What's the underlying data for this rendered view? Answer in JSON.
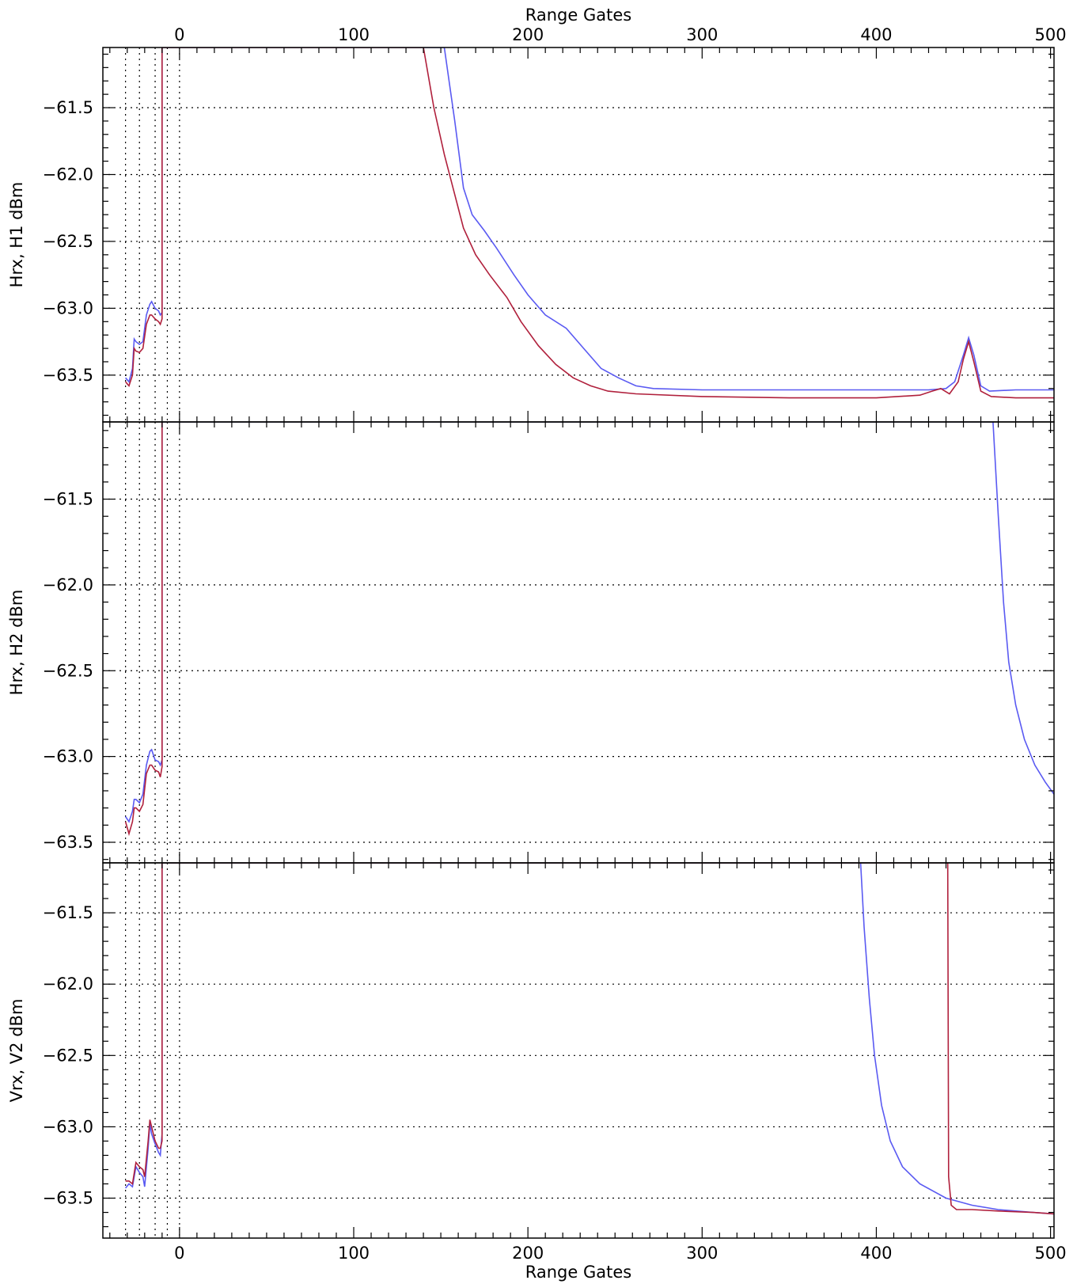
{
  "chart_data": {
    "type": "line",
    "x_axis": {
      "label_top": "Range Gates",
      "label_bottom": "Range Gates",
      "xlim": [
        -44,
        502
      ],
      "ticks": [
        0,
        100,
        200,
        300,
        400,
        500
      ],
      "tick_labels": [
        "0",
        "100",
        "200",
        "300",
        "400",
        "500"
      ]
    },
    "vertical_dotted_lines": [
      -31,
      -23,
      -14,
      -7,
      0
    ],
    "series_colors": {
      "blue": "#5a5af2",
      "red": "#b0203c"
    },
    "panels": [
      {
        "ylabel": "Hrx, H1 dBm",
        "ylim": [
          -63.85,
          -61.05
        ],
        "yticks": [
          -61.5,
          -62.0,
          -62.5,
          -63.0,
          -63.5
        ],
        "ytick_labels": [
          "−61.5",
          "−62.0",
          "−62.5",
          "−63.0",
          "−63.5"
        ],
        "series": [
          {
            "color": "blue",
            "points": [
              [
                -31,
                -63.52
              ],
              [
                -29,
                -63.55
              ],
              [
                -27,
                -63.45
              ],
              [
                -26,
                -63.23
              ],
              [
                -25,
                -63.25
              ],
              [
                -23,
                -63.27
              ],
              [
                -21,
                -63.25
              ],
              [
                -19,
                -63.05
              ],
              [
                -17,
                -62.97
              ],
              [
                -16,
                -62.95
              ],
              [
                -14,
                -63.0
              ],
              [
                -12,
                -63.02
              ],
              [
                -11,
                -63.05
              ],
              [
                -10,
                -63.03
              ],
              [
                -10,
                -61.05
              ],
              [
                152,
                -61.05
              ],
              [
                158,
                -61.6
              ],
              [
                163,
                -62.1
              ],
              [
                168,
                -62.3
              ],
              [
                175,
                -62.42
              ],
              [
                182,
                -62.55
              ],
              [
                192,
                -62.75
              ],
              [
                200,
                -62.9
              ],
              [
                210,
                -63.05
              ],
              [
                222,
                -63.15
              ],
              [
                232,
                -63.3
              ],
              [
                242,
                -63.45
              ],
              [
                252,
                -63.52
              ],
              [
                262,
                -63.58
              ],
              [
                272,
                -63.6
              ],
              [
                300,
                -63.61
              ],
              [
                350,
                -63.61
              ],
              [
                400,
                -63.61
              ],
              [
                430,
                -63.61
              ],
              [
                440,
                -63.6
              ],
              [
                445,
                -63.55
              ],
              [
                450,
                -63.35
              ],
              [
                453,
                -63.22
              ],
              [
                456,
                -63.35
              ],
              [
                460,
                -63.58
              ],
              [
                465,
                -63.62
              ],
              [
                480,
                -63.61
              ],
              [
                500,
                -63.61
              ],
              [
                502,
                -63.61
              ]
            ]
          },
          {
            "color": "red",
            "points": [
              [
                -31,
                -63.55
              ],
              [
                -29,
                -63.58
              ],
              [
                -27,
                -63.5
              ],
              [
                -26,
                -63.3
              ],
              [
                -25,
                -63.32
              ],
              [
                -23,
                -63.33
              ],
              [
                -21,
                -63.3
              ],
              [
                -19,
                -63.12
              ],
              [
                -17,
                -63.05
              ],
              [
                -16,
                -63.05
              ],
              [
                -14,
                -63.08
              ],
              [
                -12,
                -63.1
              ],
              [
                -11,
                -63.12
              ],
              [
                -10,
                -63.08
              ],
              [
                -10,
                -61.05
              ],
              [
                140,
                -61.05
              ],
              [
                146,
                -61.5
              ],
              [
                152,
                -61.85
              ],
              [
                158,
                -62.15
              ],
              [
                163,
                -62.4
              ],
              [
                170,
                -62.6
              ],
              [
                178,
                -62.75
              ],
              [
                188,
                -62.92
              ],
              [
                196,
                -63.1
              ],
              [
                206,
                -63.28
              ],
              [
                216,
                -63.42
              ],
              [
                226,
                -63.52
              ],
              [
                236,
                -63.58
              ],
              [
                246,
                -63.62
              ],
              [
                262,
                -63.64
              ],
              [
                300,
                -63.66
              ],
              [
                350,
                -63.67
              ],
              [
                400,
                -63.67
              ],
              [
                425,
                -63.65
              ],
              [
                432,
                -63.62
              ],
              [
                437,
                -63.6
              ],
              [
                442,
                -63.64
              ],
              [
                447,
                -63.55
              ],
              [
                450,
                -63.38
              ],
              [
                453,
                -63.25
              ],
              [
                456,
                -63.4
              ],
              [
                460,
                -63.62
              ],
              [
                466,
                -63.66
              ],
              [
                480,
                -63.67
              ],
              [
                502,
                -63.67
              ]
            ]
          }
        ]
      },
      {
        "ylabel": "Hrx, H2 dBm",
        "ylim": [
          -63.62,
          -61.05
        ],
        "yticks": [
          -61.5,
          -62.0,
          -62.5,
          -63.0,
          -63.5
        ],
        "ytick_labels": [
          "−61.5",
          "−62.0",
          "−62.5",
          "−63.0",
          "−63.5"
        ],
        "series": [
          {
            "color": "blue",
            "points": [
              [
                -31,
                -63.35
              ],
              [
                -29,
                -63.38
              ],
              [
                -27,
                -63.32
              ],
              [
                -26,
                -63.25
              ],
              [
                -25,
                -63.25
              ],
              [
                -23,
                -63.27
              ],
              [
                -21,
                -63.22
              ],
              [
                -19,
                -63.05
              ],
              [
                -17,
                -62.97
              ],
              [
                -16,
                -62.96
              ],
              [
                -14,
                -63.02
              ],
              [
                -12,
                -63.03
              ],
              [
                -11,
                -63.05
              ],
              [
                -10,
                -63.02
              ],
              [
                -10,
                -61.05
              ],
              [
                467,
                -61.05
              ],
              [
                470,
                -61.6
              ],
              [
                473,
                -62.1
              ],
              [
                476,
                -62.45
              ],
              [
                480,
                -62.7
              ],
              [
                485,
                -62.9
              ],
              [
                491,
                -63.05
              ],
              [
                497,
                -63.15
              ],
              [
                502,
                -63.22
              ]
            ]
          },
          {
            "color": "red",
            "points": [
              [
                -31,
                -63.38
              ],
              [
                -29,
                -63.45
              ],
              [
                -27,
                -63.38
              ],
              [
                -26,
                -63.3
              ],
              [
                -25,
                -63.3
              ],
              [
                -23,
                -63.32
              ],
              [
                -21,
                -63.28
              ],
              [
                -19,
                -63.1
              ],
              [
                -17,
                -63.05
              ],
              [
                -16,
                -63.05
              ],
              [
                -14,
                -63.08
              ],
              [
                -12,
                -63.09
              ],
              [
                -11,
                -63.12
              ],
              [
                -10,
                -63.06
              ],
              [
                -10,
                -61.05
              ]
            ]
          }
        ]
      },
      {
        "ylabel": "Vrx, V2 dBm",
        "ylim": [
          -63.78,
          -61.15
        ],
        "yticks": [
          -61.5,
          -62.0,
          -62.5,
          -63.0,
          -63.5
        ],
        "ytick_labels": [
          "−61.5",
          "−62.0",
          "−62.5",
          "−63.0",
          "−63.5"
        ],
        "series": [
          {
            "color": "blue",
            "points": [
              [
                -31,
                -63.43
              ],
              [
                -29,
                -63.4
              ],
              [
                -27,
                -63.42
              ],
              [
                -25,
                -63.28
              ],
              [
                -23,
                -63.32
              ],
              [
                -21,
                -63.35
              ],
              [
                -20,
                -63.42
              ],
              [
                -18,
                -63.15
              ],
              [
                -17,
                -62.98
              ],
              [
                -16,
                -63.05
              ],
              [
                -14,
                -63.12
              ],
              [
                -12,
                -63.18
              ],
              [
                -11,
                -63.2
              ],
              [
                -10,
                -63.05
              ],
              [
                -10,
                -61.15
              ],
              [
                391,
                -61.15
              ],
              [
                393,
                -61.6
              ],
              [
                396,
                -62.1
              ],
              [
                399,
                -62.5
              ],
              [
                403,
                -62.85
              ],
              [
                408,
                -63.1
              ],
              [
                415,
                -63.28
              ],
              [
                425,
                -63.4
              ],
              [
                440,
                -63.5
              ],
              [
                455,
                -63.55
              ],
              [
                470,
                -63.58
              ],
              [
                490,
                -63.6
              ],
              [
                502,
                -63.61
              ]
            ]
          },
          {
            "color": "red",
            "points": [
              [
                -31,
                -63.38
              ],
              [
                -29,
                -63.38
              ],
              [
                -27,
                -63.4
              ],
              [
                -25,
                -63.25
              ],
              [
                -23,
                -63.28
              ],
              [
                -21,
                -63.3
              ],
              [
                -20,
                -63.35
              ],
              [
                -18,
                -63.1
              ],
              [
                -17,
                -62.95
              ],
              [
                -16,
                -63.0
              ],
              [
                -14,
                -63.1
              ],
              [
                -12,
                -63.15
              ],
              [
                -11,
                -63.15
              ],
              [
                -10,
                -63.1
              ],
              [
                -10,
                -61.15
              ],
              [
                441,
                -61.15
              ],
              [
                441.5,
                -63.35
              ],
              [
                443,
                -63.55
              ],
              [
                446,
                -63.58
              ],
              [
                455,
                -63.58
              ],
              [
                470,
                -63.59
              ],
              [
                490,
                -63.6
              ],
              [
                502,
                -63.61
              ]
            ]
          }
        ]
      }
    ]
  }
}
